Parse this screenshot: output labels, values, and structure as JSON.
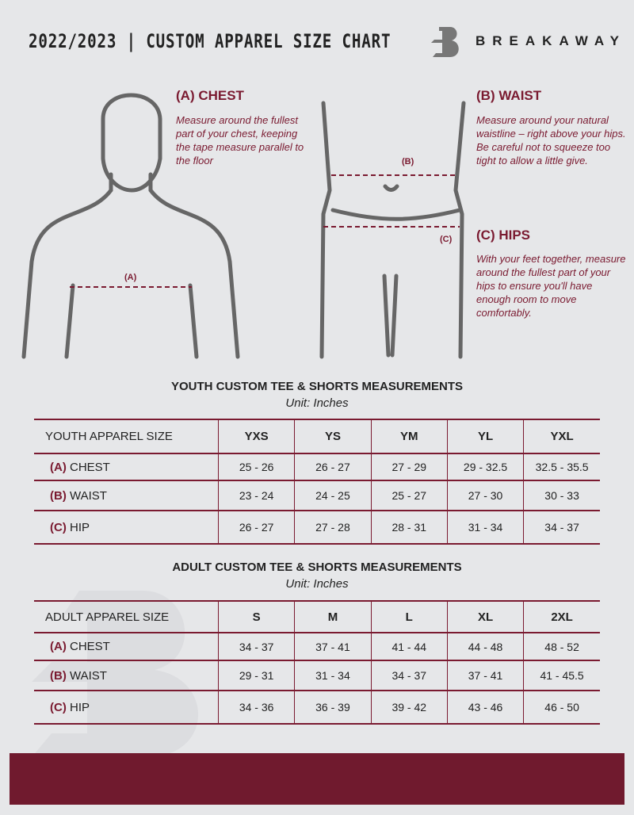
{
  "header": {
    "title": "2022/2023  |  CUSTOM APPAREL SIZE CHART",
    "brand": "BREAKAWAY"
  },
  "measures": {
    "chest": {
      "title": "(A) CHEST",
      "desc": "Measure around the fullest part of your chest, keeping the tape measure parallel to the floor",
      "marker": "(A)"
    },
    "waist": {
      "title": "(B) WAIST",
      "desc": "Measure around your natural waistline – right above your hips. Be careful not to squeeze too tight to allow a little give.",
      "marker": "(B)"
    },
    "hips": {
      "title": "(C) HIPS",
      "desc": "With your feet together, measure around the fullest part of your hips to ensure you'll have enough room to move comfortably.",
      "marker": "(C)"
    }
  },
  "youth": {
    "title": "YOUTH CUSTOM TEE & SHORTS MEASUREMENTS",
    "unit": "Unit: Inches",
    "header": "YOUTH APPAREL SIZE",
    "sizes": [
      "YXS",
      "YS",
      "YM",
      "YL",
      "YXL"
    ],
    "rows": [
      {
        "letter": "(A)",
        "label": "CHEST",
        "values": [
          "25 - 26",
          "26 - 27",
          "27 - 29",
          "29 - 32.5",
          "32.5 - 35.5"
        ]
      },
      {
        "letter": "(B)",
        "label": "WAIST",
        "values": [
          "23 - 24",
          "24 - 25",
          "25 - 27",
          "27 - 30",
          "30 - 33"
        ]
      },
      {
        "letter": "(C)",
        "label": "HIP",
        "values": [
          "26 - 27",
          "27 - 28",
          "28 - 31",
          "31 - 34",
          "34 - 37"
        ]
      }
    ]
  },
  "adult": {
    "title": "ADULT CUSTOM TEE & SHORTS MEASUREMENTS",
    "unit": "Unit: Inches",
    "header": "ADULT APPAREL SIZE",
    "sizes": [
      "S",
      "M",
      "L",
      "XL",
      "2XL"
    ],
    "rows": [
      {
        "letter": "(A)",
        "label": "CHEST",
        "values": [
          "34 - 37",
          "37 - 41",
          "41 - 44",
          "44 - 48",
          "48 - 52"
        ]
      },
      {
        "letter": "(B)",
        "label": "WAIST",
        "values": [
          "29 - 31",
          "31 - 34",
          "34 - 37",
          "37 - 41",
          "41 - 45.5"
        ]
      },
      {
        "letter": "(C)",
        "label": "HIP",
        "values": [
          "34 - 36",
          "36 - 39",
          "39 - 42",
          "43 - 46",
          "46 - 50"
        ]
      }
    ]
  },
  "colors": {
    "accent": "#7a1a30",
    "background": "#e6e7e9",
    "footer": "#701a2e"
  }
}
